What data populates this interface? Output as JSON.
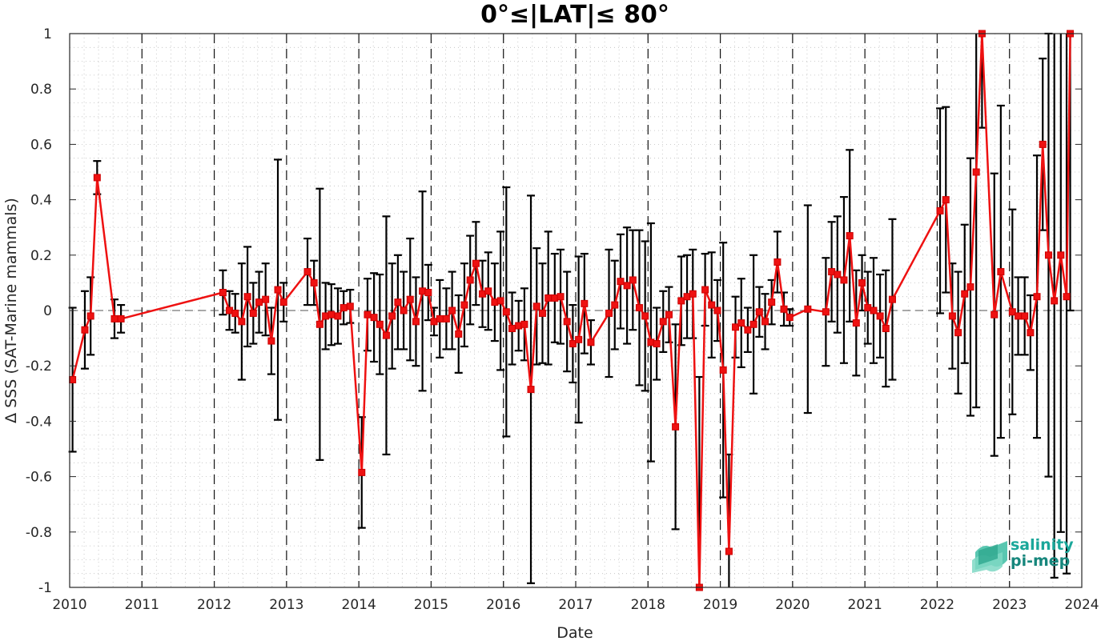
{
  "chart_data": {
    "type": "line",
    "title": "0°≤|LAT|≤ 80°",
    "xlabel": "Date",
    "ylabel": "Δ SSS (SAT-Marine mammals)",
    "xlim": [
      2010,
      2024
    ],
    "ylim": [
      -1,
      1
    ],
    "xticks": [
      "2010",
      "2011",
      "2012",
      "2013",
      "2014",
      "2015",
      "2016",
      "2017",
      "2018",
      "2019",
      "2020",
      "2021",
      "2022",
      "2023",
      "2024"
    ],
    "yticks": [
      "-1",
      "-0.8",
      "-0.6",
      "-0.4",
      "-0.2",
      "0",
      "0.2",
      "0.4",
      "0.6",
      "0.8",
      "1"
    ],
    "grid": "minor dotted",
    "year_lines": "dashed vertical at each year",
    "zero_line": "dashed horizontal",
    "series": [
      {
        "line_color": "#ee1111",
        "errorbar_color": "#000000",
        "points": [
          [
            2010.04,
            -0.25,
            0.26
          ],
          [
            2010.21,
            -0.07,
            0.14
          ],
          [
            2010.29,
            -0.02,
            0.14
          ],
          [
            2010.38,
            0.48,
            0.06
          ],
          [
            2010.62,
            -0.03,
            0.07
          ],
          [
            2010.71,
            -0.03,
            0.05
          ],
          [
            2012.12,
            0.065,
            0.08
          ],
          [
            2012.21,
            0.0,
            0.07
          ],
          [
            2012.29,
            -0.01,
            0.07
          ],
          [
            2012.38,
            -0.04,
            0.21
          ],
          [
            2012.46,
            0.05,
            0.18
          ],
          [
            2012.54,
            -0.01,
            0.11
          ],
          [
            2012.62,
            0.03,
            0.11
          ],
          [
            2012.71,
            0.04,
            0.13
          ],
          [
            2012.79,
            -0.11,
            0.12
          ],
          [
            2012.88,
            0.075,
            0.47
          ],
          [
            2012.96,
            0.03,
            0.07
          ],
          [
            2013.29,
            0.14,
            0.12
          ],
          [
            2013.38,
            0.1,
            0.08
          ],
          [
            2013.46,
            -0.05,
            0.49
          ],
          [
            2013.54,
            -0.02,
            0.12
          ],
          [
            2013.62,
            -0.015,
            0.11
          ],
          [
            2013.71,
            -0.02,
            0.1
          ],
          [
            2013.79,
            0.01,
            0.06
          ],
          [
            2013.88,
            0.015,
            0.06
          ],
          [
            2014.04,
            -0.585,
            0.2
          ],
          [
            2014.12,
            -0.015,
            0.13
          ],
          [
            2014.21,
            -0.025,
            0.16
          ],
          [
            2014.29,
            -0.05,
            0.18
          ],
          [
            2014.38,
            -0.09,
            0.43
          ],
          [
            2014.46,
            -0.02,
            0.19
          ],
          [
            2014.54,
            0.03,
            0.17
          ],
          [
            2014.62,
            0.0,
            0.14
          ],
          [
            2014.71,
            0.04,
            0.22
          ],
          [
            2014.79,
            -0.04,
            0.16
          ],
          [
            2014.88,
            0.07,
            0.36
          ],
          [
            2014.96,
            0.065,
            0.1
          ],
          [
            2015.04,
            -0.04,
            0.05
          ],
          [
            2015.12,
            -0.03,
            0.14
          ],
          [
            2015.21,
            -0.03,
            0.11
          ],
          [
            2015.29,
            0.0,
            0.14
          ],
          [
            2015.38,
            -0.085,
            0.14
          ],
          [
            2015.46,
            0.02,
            0.15
          ],
          [
            2015.54,
            0.11,
            0.16
          ],
          [
            2015.62,
            0.17,
            0.15
          ],
          [
            2015.71,
            0.06,
            0.12
          ],
          [
            2015.79,
            0.07,
            0.14
          ],
          [
            2015.88,
            0.03,
            0.14
          ],
          [
            2015.96,
            0.035,
            0.25
          ],
          [
            2016.04,
            -0.005,
            0.45
          ],
          [
            2016.12,
            -0.065,
            0.13
          ],
          [
            2016.21,
            -0.055,
            0.09
          ],
          [
            2016.29,
            -0.05,
            0.13
          ],
          [
            2016.38,
            -0.285,
            0.7
          ],
          [
            2016.46,
            0.015,
            0.21
          ],
          [
            2016.54,
            -0.01,
            0.18
          ],
          [
            2016.62,
            0.045,
            0.24
          ],
          [
            2016.71,
            0.045,
            0.16
          ],
          [
            2016.79,
            0.05,
            0.17
          ],
          [
            2016.88,
            -0.04,
            0.18
          ],
          [
            2016.96,
            -0.12,
            0.14
          ],
          [
            2017.04,
            -0.105,
            0.3
          ],
          [
            2017.12,
            0.025,
            0.18
          ],
          [
            2017.21,
            -0.115,
            0.08
          ],
          [
            2017.46,
            -0.01,
            0.23
          ],
          [
            2017.54,
            0.02,
            0.16
          ],
          [
            2017.62,
            0.105,
            0.17
          ],
          [
            2017.71,
            0.09,
            0.21
          ],
          [
            2017.79,
            0.11,
            0.18
          ],
          [
            2017.88,
            0.01,
            0.28
          ],
          [
            2017.96,
            -0.02,
            0.27
          ],
          [
            2018.04,
            -0.115,
            0.43
          ],
          [
            2018.12,
            -0.12,
            0.13
          ],
          [
            2018.21,
            -0.04,
            0.11
          ],
          [
            2018.29,
            -0.015,
            0.1
          ],
          [
            2018.38,
            -0.42,
            0.37
          ],
          [
            2018.46,
            0.035,
            0.16
          ],
          [
            2018.54,
            0.05,
            0.15
          ],
          [
            2018.62,
            0.06,
            0.16
          ],
          [
            2018.71,
            -1.0,
            0.76
          ],
          [
            2018.79,
            0.075,
            0.13
          ],
          [
            2018.88,
            0.02,
            0.19
          ],
          [
            2018.96,
            0.0,
            0.11
          ],
          [
            2019.04,
            -0.215,
            0.46
          ],
          [
            2019.12,
            -0.87,
            0.35
          ],
          [
            2019.21,
            -0.06,
            0.11
          ],
          [
            2019.29,
            -0.045,
            0.16
          ],
          [
            2019.38,
            -0.07,
            0.08
          ],
          [
            2019.46,
            -0.05,
            0.25
          ],
          [
            2019.54,
            -0.005,
            0.09
          ],
          [
            2019.62,
            -0.04,
            0.1
          ],
          [
            2019.71,
            0.03,
            0.08
          ],
          [
            2019.79,
            0.175,
            0.11
          ],
          [
            2019.88,
            0.005,
            0.06
          ],
          [
            2019.96,
            -0.025,
            0.03
          ],
          [
            2020.21,
            0.005,
            0.375
          ],
          [
            2020.46,
            -0.005,
            0.195
          ],
          [
            2020.54,
            0.14,
            0.18
          ],
          [
            2020.62,
            0.13,
            0.21
          ],
          [
            2020.71,
            0.11,
            0.3
          ],
          [
            2020.79,
            0.27,
            0.31
          ],
          [
            2020.88,
            -0.045,
            0.19
          ],
          [
            2020.96,
            0.1,
            0.1
          ],
          [
            2021.04,
            0.01,
            0.13
          ],
          [
            2021.12,
            0.0,
            0.19
          ],
          [
            2021.21,
            -0.02,
            0.15
          ],
          [
            2021.29,
            -0.065,
            0.21
          ],
          [
            2021.38,
            0.04,
            0.29
          ],
          [
            2022.04,
            0.36,
            0.37
          ],
          [
            2022.12,
            0.4,
            0.335
          ],
          [
            2022.21,
            -0.02,
            0.19
          ],
          [
            2022.29,
            -0.08,
            0.22
          ],
          [
            2022.38,
            0.06,
            0.25
          ],
          [
            2022.46,
            0.085,
            0.465
          ],
          [
            2022.54,
            0.5,
            0.85
          ],
          [
            2022.62,
            1.0,
            0.34
          ],
          [
            2022.79,
            -0.015,
            0.51
          ],
          [
            2022.88,
            0.14,
            0.6
          ],
          [
            2023.04,
            -0.005,
            0.37
          ],
          [
            2023.12,
            -0.02,
            0.14
          ],
          [
            2023.21,
            -0.02,
            0.14
          ],
          [
            2023.29,
            -0.08,
            0.135
          ],
          [
            2023.38,
            0.05,
            0.51
          ],
          [
            2023.46,
            0.6,
            0.31
          ],
          [
            2023.54,
            0.2,
            0.8
          ],
          [
            2023.62,
            0.035,
            1.0
          ],
          [
            2023.71,
            0.2,
            1.0
          ],
          [
            2023.79,
            0.05,
            1.0
          ],
          [
            2023.84,
            1.0,
            1.0
          ]
        ]
      }
    ]
  },
  "logo": {
    "line1": "salinity",
    "line2": "pi-mep",
    "color1": "#1aa79a",
    "color2": "#16867c"
  }
}
